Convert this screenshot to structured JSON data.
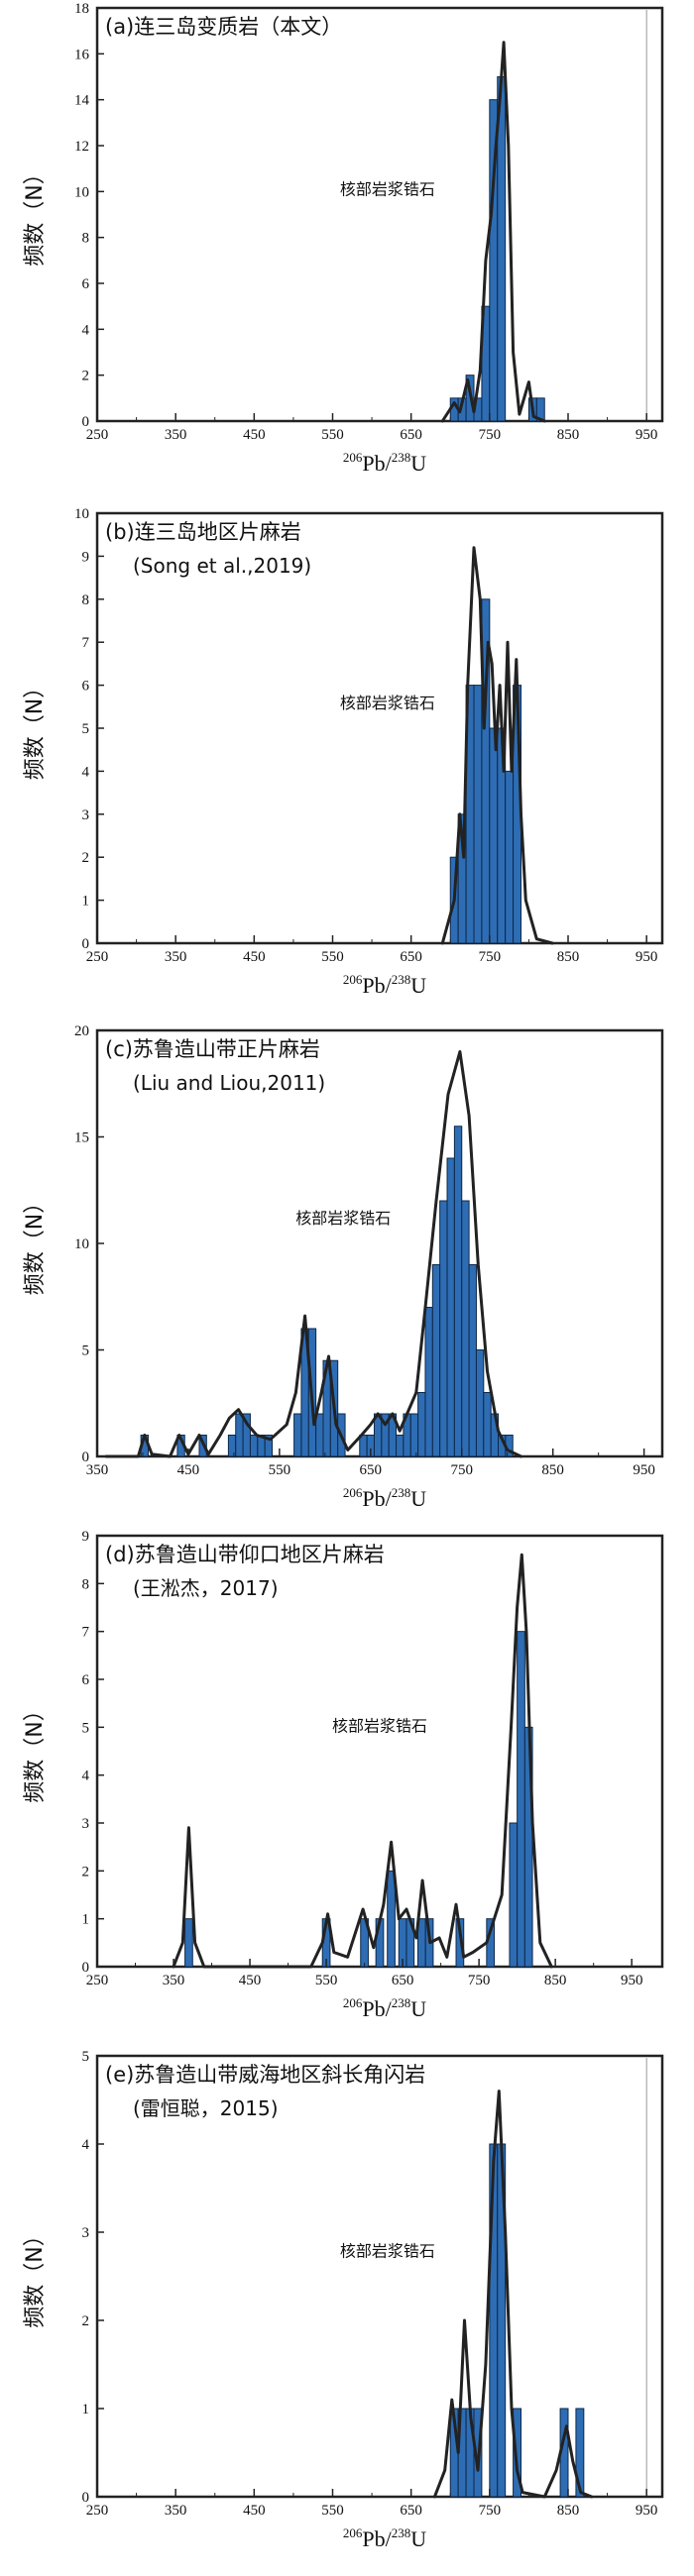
{
  "style": {
    "bar_fill": "#2e6db4",
    "bar_stroke": "#0d2848",
    "curve_color": "#222222",
    "frame_color": "#222222"
  },
  "chart_data": [
    {
      "type": "bar",
      "panel": "(a)",
      "title": "(a)连三岛变质岩（本文）",
      "subtitle": "",
      "annotation": "核部岩浆锆石",
      "xlabel": "206Pb/238U",
      "ylabel": "频数（N）",
      "xlim": [
        250,
        970
      ],
      "ylim": [
        0,
        18
      ],
      "xticks": [
        250,
        350,
        450,
        550,
        650,
        750,
        850,
        950
      ],
      "yticks": [
        0,
        2,
        4,
        6,
        8,
        10,
        12,
        14,
        16,
        18
      ],
      "ref_line": 950,
      "bin_width": 10,
      "bins": [
        [
          700,
          1
        ],
        [
          710,
          1
        ],
        [
          720,
          2
        ],
        [
          730,
          1
        ],
        [
          740,
          5
        ],
        [
          750,
          14
        ],
        [
          760,
          15
        ],
        [
          800,
          1
        ],
        [
          810,
          1
        ]
      ],
      "curve": [
        [
          690,
          0
        ],
        [
          705,
          0.8
        ],
        [
          712,
          0.4
        ],
        [
          722,
          1.8
        ],
        [
          730,
          0.4
        ],
        [
          738,
          2.2
        ],
        [
          745,
          7
        ],
        [
          752,
          9
        ],
        [
          758,
          12
        ],
        [
          763,
          14
        ],
        [
          768,
          16.5
        ],
        [
          774,
          12
        ],
        [
          780,
          3
        ],
        [
          788,
          0.3
        ],
        [
          800,
          1.7
        ],
        [
          806,
          0.2
        ],
        [
          820,
          0
        ]
      ]
    },
    {
      "type": "bar",
      "panel": "(b)",
      "title": "(b)连三岛地区片麻岩",
      "subtitle": "(Song et al.,2019)",
      "annotation": "核部岩浆锆石",
      "xlabel": "206Pb/238U",
      "ylabel": "频数（N）",
      "xlim": [
        250,
        970
      ],
      "ylim": [
        0,
        10
      ],
      "xticks": [
        250,
        350,
        450,
        550,
        650,
        750,
        850,
        950
      ],
      "yticks": [
        0,
        1,
        2,
        3,
        4,
        5,
        6,
        7,
        8,
        9,
        10
      ],
      "bin_width": 10,
      "bins": [
        [
          700,
          2
        ],
        [
          710,
          3
        ],
        [
          720,
          6
        ],
        [
          730,
          6
        ],
        [
          740,
          8
        ],
        [
          750,
          5
        ],
        [
          760,
          5
        ],
        [
          770,
          4
        ],
        [
          780,
          6
        ]
      ],
      "curve": [
        [
          690,
          0
        ],
        [
          705,
          1
        ],
        [
          712,
          3
        ],
        [
          717,
          2
        ],
        [
          722,
          6
        ],
        [
          730,
          9.2
        ],
        [
          738,
          8
        ],
        [
          743,
          5
        ],
        [
          748,
          7
        ],
        [
          753,
          6.5
        ],
        [
          758,
          4.5
        ],
        [
          763,
          6
        ],
        [
          768,
          4
        ],
        [
          773,
          7
        ],
        [
          778,
          4
        ],
        [
          784,
          6.6
        ],
        [
          790,
          3
        ],
        [
          796,
          1
        ],
        [
          810,
          0.1
        ],
        [
          830,
          0
        ]
      ]
    },
    {
      "type": "bar",
      "panel": "(c)",
      "title": "(c)苏鲁造山带正片麻岩",
      "subtitle": "(Liu and Liou,2011)",
      "annotation": "核部岩浆锆石",
      "xlabel": "206Pb/238U",
      "ylabel": "频数（N）",
      "xlim": [
        350,
        970
      ],
      "ylim": [
        0,
        20
      ],
      "xticks": [
        350,
        450,
        550,
        650,
        750,
        850,
        950
      ],
      "yticks": [
        0,
        5,
        10,
        15,
        20
      ],
      "bin_width": 8,
      "bins": [
        [
          398,
          1
        ],
        [
          438,
          1
        ],
        [
          462,
          1
        ],
        [
          494,
          1
        ],
        [
          502,
          2
        ],
        [
          510,
          2
        ],
        [
          518,
          1
        ],
        [
          526,
          1
        ],
        [
          534,
          1
        ],
        [
          566,
          2
        ],
        [
          574,
          6
        ],
        [
          582,
          6
        ],
        [
          590,
          2
        ],
        [
          598,
          4.5
        ],
        [
          606,
          4.5
        ],
        [
          614,
          2
        ],
        [
          638,
          1
        ],
        [
          646,
          1
        ],
        [
          654,
          2
        ],
        [
          662,
          2
        ],
        [
          670,
          2
        ],
        [
          678,
          1
        ],
        [
          686,
          2
        ],
        [
          694,
          2
        ],
        [
          702,
          3
        ],
        [
          710,
          7
        ],
        [
          718,
          9
        ],
        [
          726,
          12
        ],
        [
          734,
          14
        ],
        [
          742,
          15.5
        ],
        [
          750,
          12
        ],
        [
          758,
          9
        ],
        [
          766,
          5
        ],
        [
          774,
          3
        ],
        [
          782,
          2
        ],
        [
          790,
          1
        ],
        [
          798,
          1
        ]
      ],
      "curve": [
        [
          360,
          0
        ],
        [
          395,
          0
        ],
        [
          402,
          1
        ],
        [
          410,
          0.1
        ],
        [
          430,
          0
        ],
        [
          440,
          1
        ],
        [
          450,
          0.1
        ],
        [
          462,
          1
        ],
        [
          472,
          0.1
        ],
        [
          485,
          1
        ],
        [
          495,
          1.8
        ],
        [
          505,
          2.2
        ],
        [
          515,
          1.5
        ],
        [
          525,
          1
        ],
        [
          540,
          0.8
        ],
        [
          558,
          1.5
        ],
        [
          568,
          3
        ],
        [
          578,
          6.6
        ],
        [
          588,
          1.5
        ],
        [
          596,
          3
        ],
        [
          604,
          4.7
        ],
        [
          612,
          1.5
        ],
        [
          625,
          0.3
        ],
        [
          640,
          1
        ],
        [
          650,
          1.5
        ],
        [
          658,
          2
        ],
        [
          666,
          1.5
        ],
        [
          674,
          2
        ],
        [
          682,
          1.2
        ],
        [
          690,
          2
        ],
        [
          700,
          3
        ],
        [
          710,
          7
        ],
        [
          722,
          12
        ],
        [
          735,
          17
        ],
        [
          748,
          19
        ],
        [
          758,
          16
        ],
        [
          768,
          9
        ],
        [
          778,
          4
        ],
        [
          790,
          1.2
        ],
        [
          800,
          0.3
        ],
        [
          815,
          0
        ]
      ]
    },
    {
      "type": "bar",
      "panel": "(d)",
      "title": "(d)苏鲁造山带仰口地区片麻岩",
      "subtitle": "(王淞杰，2017)",
      "annotation": "核部岩浆锆石",
      "xlabel": "206Pb/238U",
      "ylabel": "频数（N）",
      "xlim": [
        250,
        990
      ],
      "ylim": [
        0,
        9
      ],
      "xticks": [
        250,
        350,
        450,
        550,
        650,
        750,
        850,
        950
      ],
      "yticks": [
        0,
        1,
        2,
        3,
        4,
        5,
        6,
        7,
        8,
        9
      ],
      "bin_width": 10,
      "bins": [
        [
          365,
          1
        ],
        [
          545,
          1
        ],
        [
          595,
          1
        ],
        [
          615,
          1
        ],
        [
          630,
          2
        ],
        [
          645,
          1
        ],
        [
          655,
          1
        ],
        [
          670,
          1
        ],
        [
          680,
          1
        ],
        [
          720,
          1
        ],
        [
          760,
          1
        ],
        [
          790,
          3
        ],
        [
          800,
          7
        ],
        [
          810,
          5
        ]
      ],
      "curve": [
        [
          350,
          0
        ],
        [
          362,
          0.5
        ],
        [
          370,
          2.9
        ],
        [
          378,
          0.5
        ],
        [
          390,
          0
        ],
        [
          530,
          0
        ],
        [
          545,
          0.5
        ],
        [
          552,
          1.1
        ],
        [
          560,
          0.3
        ],
        [
          578,
          0.2
        ],
        [
          598,
          1.2
        ],
        [
          612,
          0.4
        ],
        [
          625,
          1.3
        ],
        [
          635,
          2.6
        ],
        [
          645,
          1
        ],
        [
          655,
          1.2
        ],
        [
          668,
          0.6
        ],
        [
          676,
          1.8
        ],
        [
          686,
          0.5
        ],
        [
          698,
          0.6
        ],
        [
          708,
          0.2
        ],
        [
          720,
          1.3
        ],
        [
          730,
          0.2
        ],
        [
          742,
          0.3
        ],
        [
          760,
          0.5
        ],
        [
          780,
          1.5
        ],
        [
          792,
          5
        ],
        [
          800,
          7.5
        ],
        [
          806,
          8.6
        ],
        [
          812,
          7
        ],
        [
          820,
          3
        ],
        [
          830,
          0.5
        ],
        [
          845,
          0
        ]
      ]
    },
    {
      "type": "bar",
      "panel": "(e)",
      "title": "(e)苏鲁造山带威海地区斜长角闪岩",
      "subtitle": "(雷恒聪，2015)",
      "annotation": "核部岩浆锆石",
      "xlabel": "206Pb/238U",
      "ylabel": "频数（N）",
      "xlim": [
        250,
        970
      ],
      "ylim": [
        0,
        5
      ],
      "xticks": [
        250,
        350,
        450,
        550,
        650,
        750,
        850,
        950
      ],
      "yticks": [
        0,
        1,
        2,
        3,
        4,
        5
      ],
      "ref_line": 950,
      "bin_width": 10,
      "bins": [
        [
          700,
          1
        ],
        [
          710,
          1
        ],
        [
          720,
          1
        ],
        [
          730,
          1
        ],
        [
          750,
          4
        ],
        [
          760,
          4
        ],
        [
          780,
          1
        ],
        [
          840,
          1
        ],
        [
          860,
          1
        ]
      ],
      "curve": [
        [
          680,
          0
        ],
        [
          693,
          0.3
        ],
        [
          702,
          1.1
        ],
        [
          710,
          0.5
        ],
        [
          718,
          2
        ],
        [
          726,
          0.9
        ],
        [
          735,
          0.3
        ],
        [
          745,
          1.5
        ],
        [
          755,
          3.8
        ],
        [
          762,
          4.6
        ],
        [
          770,
          3
        ],
        [
          778,
          1
        ],
        [
          785,
          0.3
        ],
        [
          792,
          0.05
        ],
        [
          820,
          0
        ],
        [
          835,
          0.3
        ],
        [
          848,
          0.8
        ],
        [
          856,
          0.4
        ],
        [
          866,
          0.05
        ],
        [
          880,
          0
        ]
      ]
    }
  ]
}
